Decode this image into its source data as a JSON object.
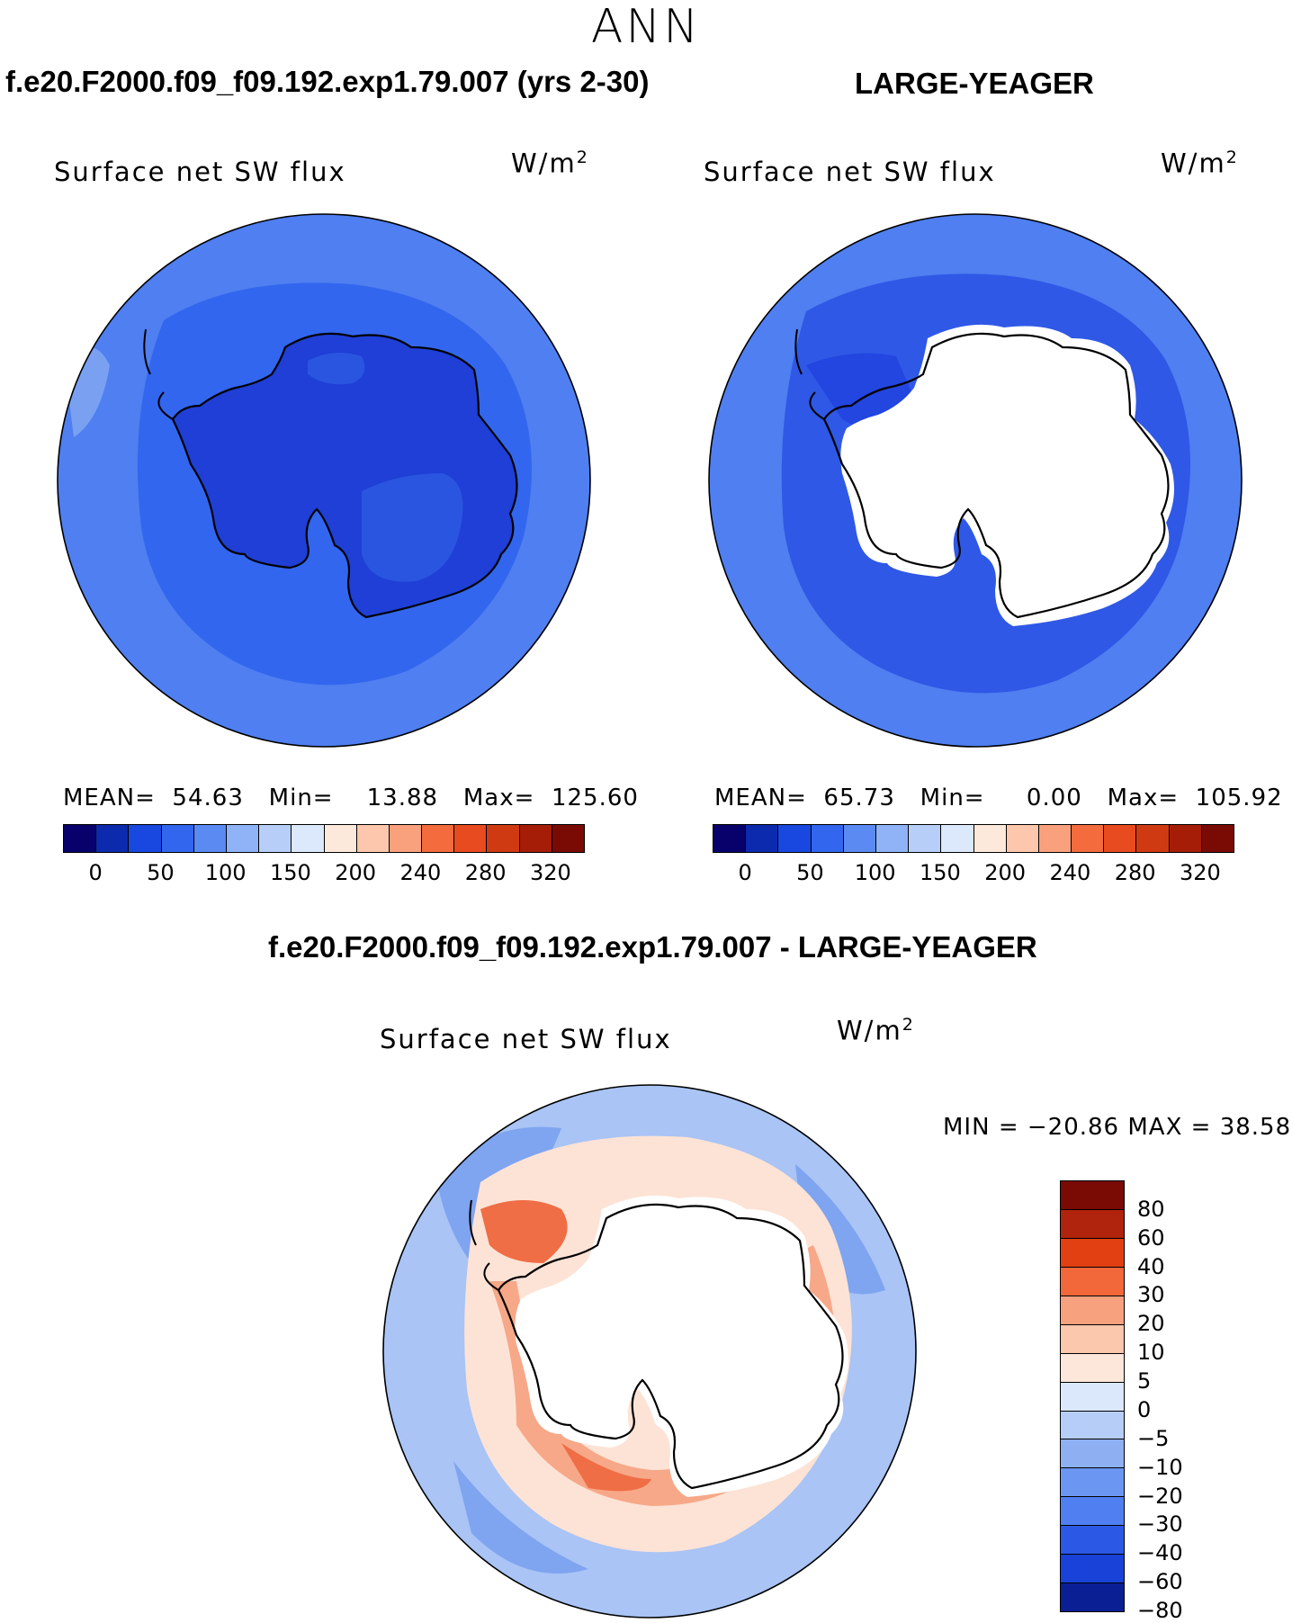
{
  "season": "ANN",
  "panels": {
    "model": {
      "title": "f.e20.F2000.f09_f09.192.exp1.79.007 (yrs 2-30)",
      "variable": "Surface net SW flux",
      "units_base": "W/m",
      "units_exp": "2",
      "mean_label": "MEAN=",
      "mean_value": "54.63",
      "min_label": "Min=",
      "min_value": "13.88",
      "max_label": "Max=",
      "max_value": "125.60",
      "fields": {
        "ocean": "#4f7ff0",
        "shelf": "#3366ee",
        "land": "#1f3fd6",
        "interior": "#2a55e0"
      }
    },
    "obs": {
      "title": "LARGE-YEAGER",
      "variable": "Surface net SW flux",
      "units_base": "W/m",
      "units_exp": "2",
      "mean_label": "MEAN=",
      "mean_value": "65.73",
      "min_label": "Min=",
      "min_value": "0.00",
      "max_label": "Max=",
      "max_value": "105.92",
      "fields": {
        "ocean": "#4f7ff0",
        "shelf": "#2f58e6",
        "coast": "#2345e0",
        "land": "#ffffff"
      }
    },
    "diff": {
      "title": "f.e20.F2000.f09_f09.192.exp1.79.007 - LARGE-YEAGER",
      "variable": "Surface net SW flux",
      "units_base": "W/m",
      "units_exp": "2",
      "minmax_text": "MIN = −20.86 MAX =    38.58",
      "fields": {
        "ocean": "#a9c4f5",
        "outer": "#7fa4f0",
        "ring": "#fde3d6",
        "warm": "#f7a888",
        "hot": "#ef6e45",
        "land": "#ffffff"
      }
    }
  },
  "abs_colorbar": {
    "colors": [
      "#08006b",
      "#0c2aae",
      "#1848e0",
      "#3366ee",
      "#5b8bf2",
      "#8fb3f6",
      "#b7cff8",
      "#dce8fb",
      "#fde9dc",
      "#fcc7ac",
      "#f9a07c",
      "#f46c3d",
      "#e84b1f",
      "#d03a12",
      "#a51d07",
      "#7a0a04"
    ],
    "labels": [
      "0",
      "50",
      "100",
      "150",
      "200",
      "240",
      "280",
      "320"
    ]
  },
  "diff_colorbar": {
    "colors": [
      "#7a0a04",
      "#b0230c",
      "#e23f12",
      "#f2683a",
      "#f7a17f",
      "#fbc7ad",
      "#fde6da",
      "#dbe8fb",
      "#b6cdf7",
      "#8eb0f3",
      "#6b96f1",
      "#4f7ff0",
      "#2c58e6",
      "#1842d8",
      "#0a1f93"
    ],
    "labels": [
      "80",
      "60",
      "40",
      "30",
      "20",
      "10",
      "5",
      "0",
      "−5",
      "−10",
      "−20",
      "−30",
      "−40",
      "−60",
      "−80"
    ]
  },
  "chart_data": [
    {
      "type": "heatmap",
      "title": "Surface net SW flux",
      "units": "W/m2",
      "mean": 54.63,
      "min": 13.88,
      "max": 125.6,
      "levels": [
        0,
        25,
        50,
        75,
        100,
        125,
        150,
        175,
        200,
        220,
        240,
        260,
        280,
        300,
        320
      ]
    },
    {
      "type": "heatmap",
      "title": "Surface net SW flux",
      "units": "W/m2",
      "mean": 65.73,
      "min": 0.0,
      "max": 105.92,
      "levels": [
        0,
        25,
        50,
        75,
        100,
        125,
        150,
        175,
        200,
        220,
        240,
        260,
        280,
        300,
        320
      ]
    },
    {
      "type": "heatmap",
      "title": "Surface net SW flux",
      "units": "W/m2",
      "min": -20.86,
      "max": 38.58,
      "levels": [
        80,
        60,
        40,
        30,
        20,
        10,
        5,
        0,
        -5,
        -10,
        -20,
        -30,
        -40,
        -60,
        -80
      ]
    }
  ]
}
